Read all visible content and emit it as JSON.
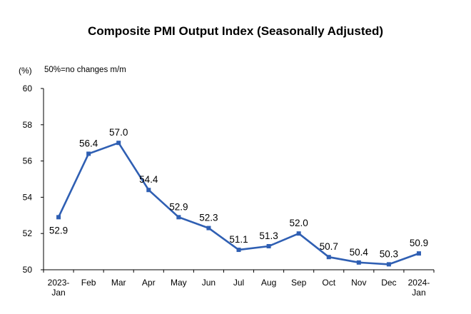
{
  "chart_data": {
    "type": "line",
    "title": "Composite PMI Output Index (Seasonally Adjusted)",
    "unit_label": "(%)",
    "note": "50%=no changes m/m",
    "categories": [
      [
        "2023-",
        "Jan"
      ],
      [
        "Feb"
      ],
      [
        "Mar"
      ],
      [
        "Apr"
      ],
      [
        "May"
      ],
      [
        "Jun"
      ],
      [
        "Jul"
      ],
      [
        "Aug"
      ],
      [
        "Sep"
      ],
      [
        "Oct"
      ],
      [
        "Nov"
      ],
      [
        "Dec"
      ],
      [
        "2024-",
        "Jan"
      ]
    ],
    "series": [
      {
        "values": [
          52.9,
          56.4,
          57.0,
          54.4,
          52.9,
          52.3,
          51.1,
          51.3,
          52.0,
          50.7,
          50.4,
          50.3,
          50.9
        ]
      }
    ],
    "data_labels": [
      "52.9",
      "56.4",
      "57.0",
      "54.4",
      "52.9",
      "52.3",
      "51.1",
      "51.3",
      "52.0",
      "50.7",
      "50.4",
      "50.3",
      "50.9"
    ],
    "ylim": [
      50,
      60
    ],
    "yticks": [
      50,
      52,
      54,
      56,
      58,
      60
    ],
    "grid": false,
    "line_color": "#2f5fb3"
  }
}
